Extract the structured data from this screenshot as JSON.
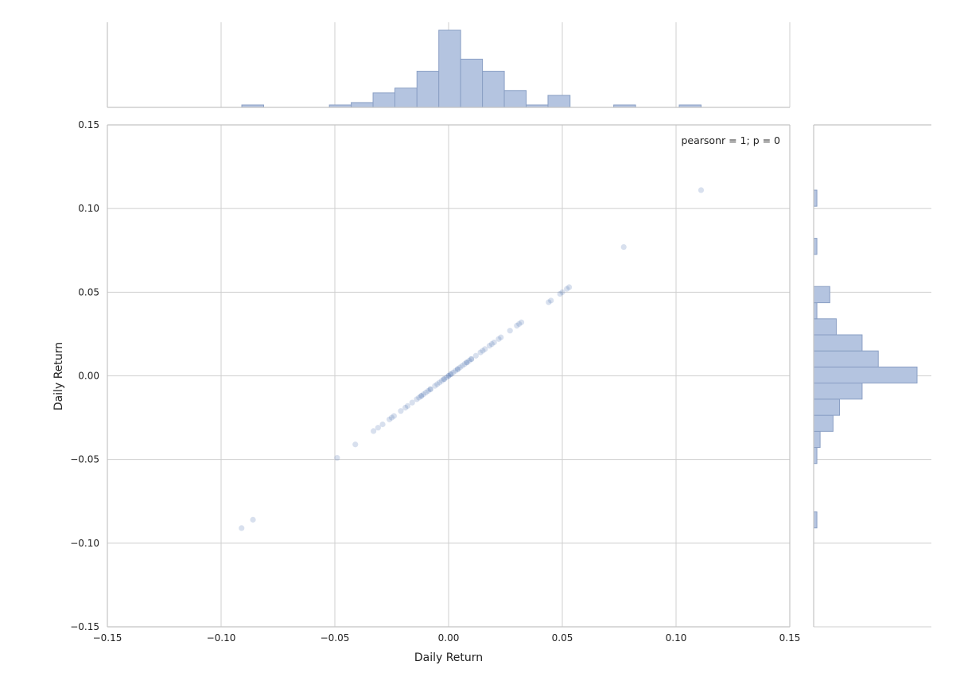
{
  "chart_data": {
    "type": "scatter",
    "subtype": "jointplot",
    "x_label": "Daily Return",
    "y_label": "Daily Return",
    "xlim": [
      -0.15,
      0.15
    ],
    "ylim": [
      -0.15,
      0.15
    ],
    "ticks": [
      -0.15,
      -0.1,
      -0.05,
      0.0,
      0.05,
      0.1,
      0.15
    ],
    "tick_labels": [
      "−0.15",
      "−0.10",
      "−0.05",
      "0.00",
      "0.05",
      "0.10",
      "0.15"
    ],
    "grid": true,
    "annotation": "pearsonr = 1; p = 0",
    "annotation_position": "top-right",
    "color": "#4c72b0",
    "point_alpha": 0.22,
    "points": [
      -0.091,
      -0.086,
      -0.049,
      -0.041,
      -0.033,
      -0.031,
      -0.029,
      -0.026,
      -0.025,
      -0.024,
      -0.021,
      -0.019,
      -0.018,
      -0.016,
      -0.014,
      -0.013,
      -0.012,
      -0.012,
      -0.011,
      -0.01,
      -0.009,
      -0.008,
      -0.008,
      -0.006,
      -0.005,
      -0.004,
      -0.003,
      -0.002,
      -0.002,
      -0.001,
      0.0,
      0.0,
      0.001,
      0.001,
      0.002,
      0.003,
      0.004,
      0.004,
      0.005,
      0.006,
      0.007,
      0.008,
      0.008,
      0.009,
      0.01,
      0.01,
      0.012,
      0.014,
      0.015,
      0.016,
      0.018,
      0.019,
      0.02,
      0.022,
      0.023,
      0.027,
      0.03,
      0.031,
      0.032,
      0.044,
      0.045,
      0.049,
      0.05,
      0.052,
      0.053,
      0.077,
      0.111
    ],
    "x_histogram": {
      "bin_edges": [
        -0.0909,
        -0.0813,
        -0.0716,
        -0.062,
        -0.0524,
        -0.0428,
        -0.0332,
        -0.0236,
        -0.0139,
        -0.0043,
        0.0053,
        0.0149,
        0.0245,
        0.0341,
        0.0437,
        0.0534,
        0.063,
        0.0726,
        0.0822,
        0.0918,
        0.1014,
        0.111
      ],
      "counts": [
        1,
        0,
        0,
        0,
        1,
        2,
        6,
        8,
        15,
        32,
        20,
        15,
        7,
        1,
        5,
        0,
        0,
        1,
        0,
        0,
        1
      ]
    },
    "y_histogram": {
      "bin_edges": [
        -0.0909,
        -0.0813,
        -0.0716,
        -0.062,
        -0.0524,
        -0.0428,
        -0.0332,
        -0.0236,
        -0.0139,
        -0.0043,
        0.0053,
        0.0149,
        0.0245,
        0.0341,
        0.0437,
        0.0534,
        0.063,
        0.0726,
        0.0822,
        0.0918,
        0.1014,
        0.111
      ],
      "counts": [
        1,
        0,
        0,
        0,
        1,
        2,
        6,
        8,
        15,
        32,
        20,
        15,
        7,
        1,
        5,
        0,
        0,
        1,
        0,
        0,
        1
      ]
    }
  }
}
